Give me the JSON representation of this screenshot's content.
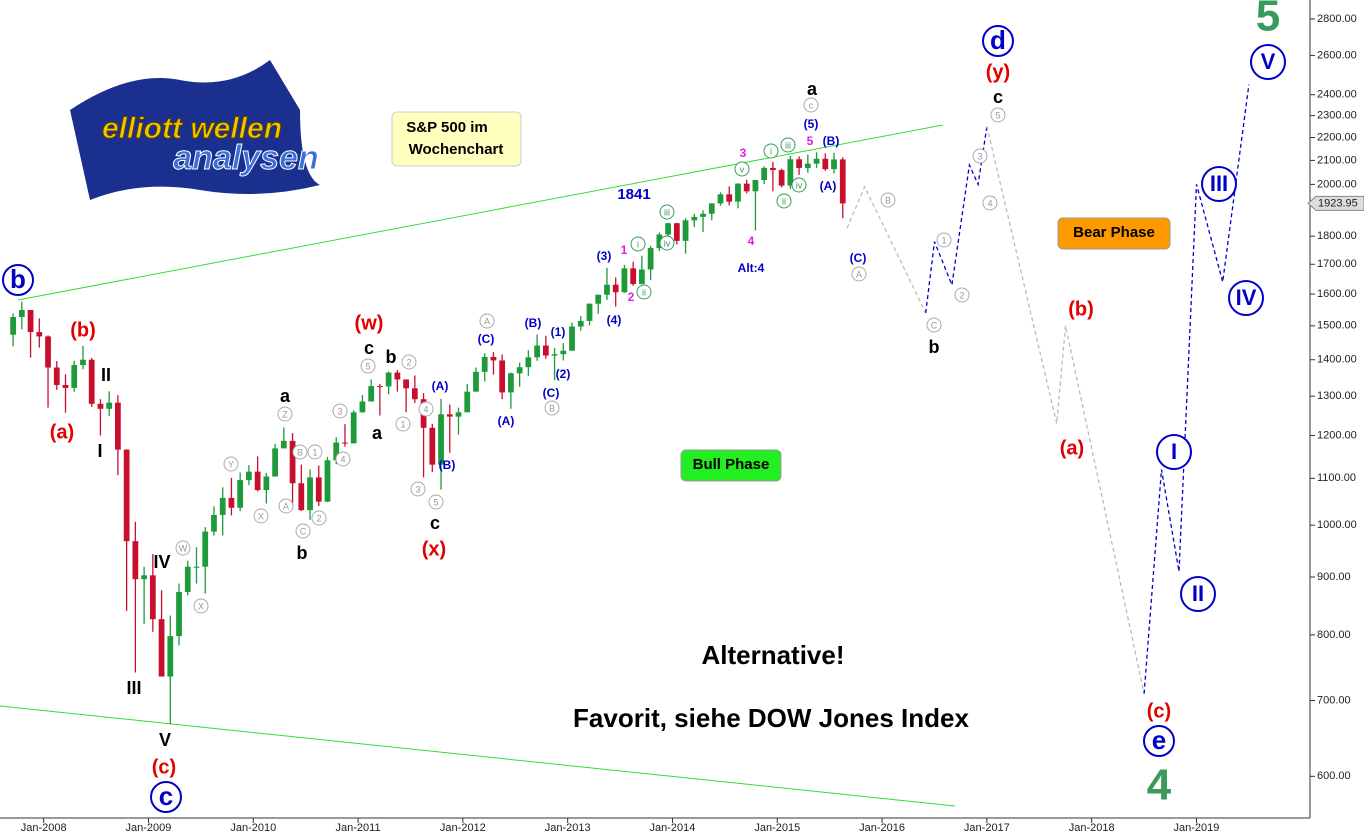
{
  "chart_data": {
    "type": "candlestick",
    "logo": [
      "elliott wellen",
      "analysen"
    ],
    "info_box": [
      "S&P 500 im",
      "Wochenchart"
    ],
    "bull_label": "Bull Phase",
    "bear_label": "Bear Phase",
    "notes": [
      "Alternative!",
      "Favorit, siehe DOW Jones Index"
    ],
    "count_label": "1841",
    "log": true,
    "grid": false,
    "up_color": "#1f9a3a",
    "down_color": "#c8102e",
    "xlim": [
      "2007-08",
      "2020-02"
    ],
    "ylim": [
      549,
      2910
    ],
    "yticks": [
      {
        "value": 600,
        "label": "600.00"
      },
      {
        "value": 700,
        "label": "700.00"
      },
      {
        "value": 800,
        "label": "800.00"
      },
      {
        "value": 900,
        "label": "900.00"
      },
      {
        "value": 1000,
        "label": "1000.00"
      },
      {
        "value": 1100,
        "label": "1100.00"
      },
      {
        "value": 1200,
        "label": "1200.00"
      },
      {
        "value": 1300,
        "label": "1300.00"
      },
      {
        "value": 1400,
        "label": "1400.00"
      },
      {
        "value": 1500,
        "label": "1500.00"
      },
      {
        "value": 1600,
        "label": "1600.00"
      },
      {
        "value": 1700,
        "label": "1700.00"
      },
      {
        "value": 1800,
        "label": "1800.00"
      },
      {
        "value": 2000,
        "label": "2000.00"
      },
      {
        "value": 2100,
        "label": "2100.00"
      },
      {
        "value": 2200,
        "label": "2200.00"
      },
      {
        "value": 2300,
        "label": "2300.00"
      },
      {
        "value": 2400,
        "label": "2400.00"
      },
      {
        "value": 2600,
        "label": "2600.00"
      },
      {
        "value": 2800,
        "label": "2800.00"
      }
    ],
    "xticks": [
      {
        "value": "2008-01",
        "label": "Jan-2008"
      },
      {
        "value": "2009-01",
        "label": "Jan-2009"
      },
      {
        "value": "2010-01",
        "label": "Jan-2010"
      },
      {
        "value": "2011-01",
        "label": "Jan-2011"
      },
      {
        "value": "2012-01",
        "label": "Jan-2012"
      },
      {
        "value": "2013-01",
        "label": "Jan-2013"
      },
      {
        "value": "2014-01",
        "label": "Jan-2014"
      },
      {
        "value": "2015-01",
        "label": "Jan-2015"
      },
      {
        "value": "2016-01",
        "label": "Jan-2016"
      },
      {
        "value": "2017-01",
        "label": "Jan-2017"
      },
      {
        "value": "2018-01",
        "label": "Jan-2018"
      },
      {
        "value": "2019-01",
        "label": "Jan-2019"
      }
    ],
    "x": [
      "2007-09",
      "2007-10",
      "2007-11",
      "2007-12",
      "2008-01",
      "2008-02",
      "2008-03",
      "2008-04",
      "2008-05",
      "2008-06",
      "2008-07",
      "2008-08",
      "2008-09",
      "2008-10",
      "2008-11",
      "2008-12",
      "2009-01",
      "2009-02",
      "2009-03",
      "2009-04",
      "2009-05",
      "2009-06",
      "2009-07",
      "2009-08",
      "2009-09",
      "2009-10",
      "2009-11",
      "2009-12",
      "2010-01",
      "2010-02",
      "2010-03",
      "2010-04",
      "2010-05",
      "2010-06",
      "2010-07",
      "2010-08",
      "2010-09",
      "2010-10",
      "2010-11",
      "2010-12",
      "2011-01",
      "2011-02",
      "2011-03",
      "2011-04",
      "2011-05",
      "2011-06",
      "2011-07",
      "2011-08",
      "2011-09",
      "2011-10",
      "2011-11",
      "2011-12",
      "2012-01",
      "2012-02",
      "2012-03",
      "2012-04",
      "2012-05",
      "2012-06",
      "2012-07",
      "2012-08",
      "2012-09",
      "2012-10",
      "2012-11",
      "2012-12",
      "2013-01",
      "2013-02",
      "2013-03",
      "2013-04",
      "2013-05",
      "2013-06",
      "2013-07",
      "2013-08",
      "2013-09",
      "2013-10",
      "2013-11",
      "2013-12",
      "2014-01",
      "2014-02",
      "2014-03",
      "2014-04",
      "2014-05",
      "2014-06",
      "2014-07",
      "2014-08",
      "2014-09",
      "2014-10",
      "2014-11",
      "2014-12",
      "2015-01",
      "2015-02",
      "2015-03",
      "2015-04",
      "2015-05",
      "2015-06",
      "2015-07",
      "2015-08"
    ],
    "open": [
      1473,
      1527,
      1549,
      1481,
      1468,
      1378,
      1330,
      1322,
      1385,
      1400,
      1280,
      1267,
      1283,
      1166,
      968,
      896,
      903,
      826,
      735,
      798,
      873,
      919,
      919,
      987,
      1021,
      1057,
      1036,
      1096,
      1115,
      1074,
      1104,
      1169,
      1187,
      1089,
      1031,
      1102,
      1049,
      1141,
      1183,
      1181,
      1258,
      1286,
      1327,
      1326,
      1364,
      1345,
      1321,
      1292,
      1219,
      1131,
      1253,
      1247,
      1258,
      1312,
      1366,
      1408,
      1398,
      1310,
      1362,
      1379,
      1407,
      1441,
      1412,
      1416,
      1426,
      1498,
      1515,
      1569,
      1598,
      1631,
      1606,
      1686,
      1633,
      1682,
      1757,
      1806,
      1848,
      1783,
      1859,
      1872,
      1884,
      1924,
      1960,
      1931,
      2003,
      1972,
      2018,
      2068,
      2059,
      1995,
      2105,
      2068,
      2086,
      2107,
      2063,
      2104
    ],
    "high": [
      1538,
      1576,
      1545,
      1523,
      1471,
      1396,
      1359,
      1397,
      1440,
      1405,
      1292,
      1313,
      1303,
      1167,
      1007,
      919,
      943,
      876,
      832,
      888,
      930,
      956,
      996,
      1039,
      1080,
      1101,
      1113,
      1130,
      1150,
      1112,
      1180,
      1220,
      1206,
      1131,
      1120,
      1129,
      1149,
      1196,
      1228,
      1263,
      1303,
      1345,
      1333,
      1367,
      1371,
      1345,
      1356,
      1308,
      1229,
      1293,
      1278,
      1270,
      1333,
      1378,
      1419,
      1422,
      1415,
      1364,
      1392,
      1427,
      1474,
      1470,
      1434,
      1448,
      1510,
      1530,
      1570,
      1598,
      1688,
      1655,
      1698,
      1709,
      1730,
      1765,
      1813,
      1850,
      1850,
      1867,
      1884,
      1897,
      1925,
      1968,
      1992,
      2005,
      2019,
      2018,
      2075,
      2093,
      2065,
      2119,
      2117,
      2125,
      2135,
      2130,
      2133,
      2113
    ],
    "low": [
      1439,
      1489,
      1406,
      1435,
      1270,
      1317,
      1257,
      1312,
      1373,
      1272,
      1200,
      1248,
      1107,
      840,
      741,
      818,
      805,
      735,
      667,
      783,
      867,
      888,
      870,
      979,
      979,
      1020,
      1029,
      1085,
      1071,
      1045,
      1105,
      1170,
      1040,
      1029,
      1011,
      1040,
      1048,
      1132,
      1173,
      1182,
      1257,
      1288,
      1250,
      1305,
      1312,
      1258,
      1282,
      1102,
      1114,
      1075,
      1159,
      1202,
      1259,
      1312,
      1340,
      1358,
      1292,
      1267,
      1325,
      1355,
      1397,
      1403,
      1343,
      1398,
      1426,
      1485,
      1501,
      1537,
      1581,
      1560,
      1604,
      1627,
      1633,
      1646,
      1746,
      1767,
      1770,
      1737,
      1834,
      1815,
      1859,
      1915,
      1916,
      1905,
      1964,
      1821,
      2001,
      1972,
      1988,
      1981,
      2039,
      2048,
      2068,
      2056,
      2045,
      1867
    ],
    "close": [
      1527,
      1549,
      1481,
      1468,
      1378,
      1330,
      1322,
      1385,
      1400,
      1280,
      1267,
      1283,
      1166,
      968,
      896,
      903,
      826,
      735,
      798,
      873,
      919,
      919,
      987,
      1021,
      1057,
      1036,
      1096,
      1115,
      1074,
      1104,
      1169,
      1187,
      1089,
      1031,
      1102,
      1049,
      1141,
      1183,
      1181,
      1258,
      1286,
      1327,
      1326,
      1364,
      1345,
      1321,
      1292,
      1219,
      1131,
      1253,
      1247,
      1258,
      1312,
      1366,
      1408,
      1398,
      1310,
      1362,
      1379,
      1407,
      1441,
      1412,
      1416,
      1426,
      1498,
      1515,
      1569,
      1598,
      1631,
      1606,
      1686,
      1633,
      1682,
      1757,
      1806,
      1848,
      1783,
      1859,
      1872,
      1884,
      1924,
      1960,
      1931,
      2003,
      1972,
      2018,
      2068,
      2059,
      1995,
      2105,
      2068,
      2086,
      2107,
      2063,
      2104,
      1923.95
    ],
    "projection": [
      {
        "color": "#bbbbbb",
        "x": [
          "2015-09",
          "2015-11",
          "2016-06"
        ],
        "values": [
          1830,
          1990,
          1540
        ]
      },
      {
        "color": "#0000c8",
        "x": [
          "2016-06",
          "2016-07",
          "2016-09",
          "2016-11",
          "2016-12",
          "2017-01"
        ],
        "values": [
          1540,
          1780,
          1630,
          2080,
          2000,
          2250
        ]
      },
      {
        "color": "#bbbbbb",
        "x": [
          "2017-01",
          "2017-09",
          "2017-10",
          "2018-07"
        ],
        "values": [
          2250,
          1230,
          1500,
          710
        ]
      },
      {
        "color": "#0000c8",
        "x": [
          "2018-07",
          "2018-09",
          "2018-11",
          "2019-01",
          "2019-04",
          "2019-07"
        ],
        "values": [
          710,
          1120,
          910,
          2000,
          1640,
          2450
        ]
      }
    ],
    "wave_labels": {
      "big_circled": [
        "b",
        "c",
        "d",
        "e"
      ],
      "roman_circled": [
        "I",
        "II",
        "III",
        "IV",
        "V"
      ],
      "green_big": [
        "5",
        "4"
      ],
      "red": [
        "(b)",
        "(a)",
        "(c)",
        "(w)",
        "(x)",
        "(y)",
        "(b)",
        "(a)",
        "(c)"
      ],
      "black": [
        "II",
        "I",
        "IV",
        "III",
        "V",
        "a",
        "b",
        "c",
        "b",
        "a",
        "c",
        "a",
        "c",
        "b"
      ],
      "blue": [
        "(B)",
        "(C)",
        "(A)",
        "(B)",
        "(A)",
        "(1)",
        "(2)",
        "(C)",
        "(3)",
        "(4)",
        "(5)",
        "(B)",
        "(A)",
        "(C)",
        "Alt:4"
      ],
      "magenta": [
        "1",
        "2",
        "3",
        "4",
        "5"
      ],
      "gray_circled": [
        "A",
        "B",
        "Z",
        "Y",
        "X",
        "W",
        "X",
        "A",
        "B",
        "C",
        "c",
        "A",
        "B",
        "C",
        "1",
        "2",
        "3",
        "4",
        "5",
        "2",
        "1",
        "4",
        "3",
        "5",
        "1",
        "2",
        "3",
        "4",
        "5"
      ],
      "green_circled": [
        "i",
        "ii",
        "iii",
        "iv",
        "v",
        "i",
        "ii",
        "iii",
        "iv"
      ]
    }
  }
}
